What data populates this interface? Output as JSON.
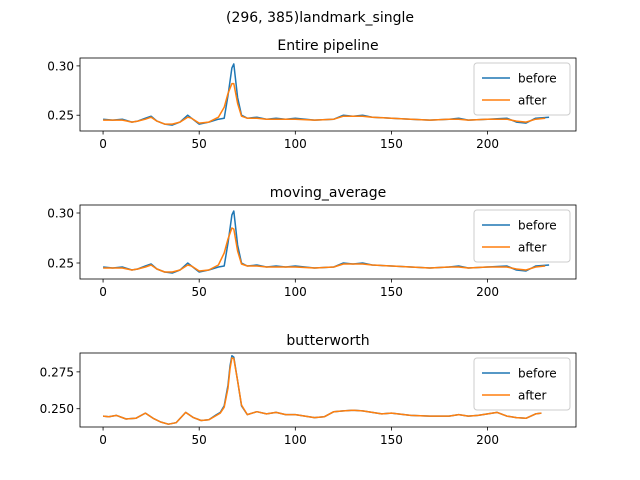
{
  "figure_title": "(296, 385)landmark_single",
  "colors": {
    "before": "#1f77b4",
    "after": "#ff7f0e"
  },
  "chart_data": [
    {
      "type": "line",
      "title": "Entire pipeline",
      "xlabel": "",
      "ylabel": "",
      "xlim": [
        -12,
        246
      ],
      "ylim": [
        0.234,
        0.308
      ],
      "xticks": [
        0,
        50,
        100,
        150,
        200
      ],
      "xtick_labels": [
        "0",
        "50",
        "100",
        "150",
        "200"
      ],
      "yticks": [
        0.25,
        0.3
      ],
      "ytick_labels": [
        "0.25",
        "0.30"
      ],
      "legend_position": "right",
      "grid": false,
      "series": [
        {
          "name": "before",
          "x": [
            0,
            5,
            10,
            15,
            18,
            22,
            25,
            28,
            32,
            36,
            40,
            44,
            46,
            50,
            55,
            60,
            63,
            65,
            67,
            68,
            70,
            72,
            75,
            80,
            85,
            90,
            95,
            100,
            110,
            120,
            125,
            130,
            135,
            140,
            150,
            160,
            170,
            180,
            185,
            190,
            200,
            210,
            215,
            220,
            225,
            232
          ],
          "y": [
            0.246,
            0.245,
            0.246,
            0.243,
            0.244,
            0.247,
            0.249,
            0.244,
            0.241,
            0.24,
            0.243,
            0.25,
            0.247,
            0.241,
            0.243,
            0.246,
            0.247,
            0.27,
            0.298,
            0.302,
            0.268,
            0.25,
            0.247,
            0.248,
            0.246,
            0.247,
            0.246,
            0.247,
            0.245,
            0.246,
            0.25,
            0.249,
            0.25,
            0.248,
            0.247,
            0.246,
            0.245,
            0.246,
            0.247,
            0.245,
            0.246,
            0.247,
            0.243,
            0.242,
            0.247,
            0.248
          ]
        },
        {
          "name": "after",
          "x": [
            0,
            5,
            10,
            15,
            18,
            22,
            25,
            28,
            32,
            36,
            40,
            44,
            46,
            50,
            55,
            60,
            63,
            65,
            67,
            68,
            70,
            72,
            75,
            80,
            85,
            90,
            95,
            100,
            110,
            120,
            125,
            130,
            135,
            140,
            150,
            160,
            170,
            180,
            185,
            190,
            200,
            210,
            215,
            220,
            225,
            230
          ],
          "y": [
            0.245,
            0.245,
            0.245,
            0.243,
            0.244,
            0.246,
            0.248,
            0.244,
            0.241,
            0.241,
            0.243,
            0.248,
            0.247,
            0.242,
            0.243,
            0.248,
            0.258,
            0.272,
            0.282,
            0.282,
            0.262,
            0.249,
            0.247,
            0.247,
            0.246,
            0.246,
            0.246,
            0.246,
            0.245,
            0.246,
            0.249,
            0.249,
            0.249,
            0.248,
            0.247,
            0.246,
            0.245,
            0.246,
            0.246,
            0.245,
            0.246,
            0.246,
            0.244,
            0.243,
            0.246,
            0.247
          ]
        }
      ]
    },
    {
      "type": "line",
      "title": "moving_average",
      "xlabel": "",
      "ylabel": "",
      "xlim": [
        -12,
        246
      ],
      "ylim": [
        0.234,
        0.308
      ],
      "xticks": [
        0,
        50,
        100,
        150,
        200
      ],
      "xtick_labels": [
        "0",
        "50",
        "100",
        "150",
        "200"
      ],
      "yticks": [
        0.25,
        0.3
      ],
      "ytick_labels": [
        "0.25",
        "0.30"
      ],
      "legend_position": "right",
      "grid": false,
      "series": [
        {
          "name": "before",
          "x": [
            0,
            5,
            10,
            15,
            18,
            22,
            25,
            28,
            32,
            36,
            40,
            44,
            46,
            50,
            55,
            60,
            63,
            65,
            67,
            68,
            70,
            72,
            75,
            80,
            85,
            90,
            95,
            100,
            110,
            120,
            125,
            130,
            135,
            140,
            150,
            160,
            170,
            180,
            185,
            190,
            200,
            210,
            215,
            220,
            225,
            232
          ],
          "y": [
            0.246,
            0.245,
            0.246,
            0.243,
            0.244,
            0.247,
            0.249,
            0.244,
            0.241,
            0.24,
            0.243,
            0.25,
            0.247,
            0.241,
            0.243,
            0.246,
            0.247,
            0.27,
            0.298,
            0.302,
            0.268,
            0.25,
            0.247,
            0.248,
            0.246,
            0.247,
            0.246,
            0.247,
            0.245,
            0.246,
            0.25,
            0.249,
            0.25,
            0.248,
            0.247,
            0.246,
            0.245,
            0.246,
            0.247,
            0.245,
            0.246,
            0.247,
            0.243,
            0.242,
            0.247,
            0.248
          ]
        },
        {
          "name": "after",
          "x": [
            0,
            5,
            10,
            15,
            18,
            22,
            25,
            28,
            32,
            36,
            40,
            44,
            46,
            50,
            55,
            60,
            63,
            65,
            67,
            68,
            70,
            72,
            75,
            80,
            85,
            90,
            95,
            100,
            110,
            120,
            125,
            130,
            135,
            140,
            150,
            160,
            170,
            180,
            185,
            190,
            200,
            210,
            215,
            220,
            225,
            230
          ],
          "y": [
            0.245,
            0.245,
            0.245,
            0.243,
            0.244,
            0.246,
            0.248,
            0.244,
            0.241,
            0.241,
            0.243,
            0.248,
            0.247,
            0.242,
            0.243,
            0.248,
            0.26,
            0.274,
            0.285,
            0.284,
            0.262,
            0.249,
            0.247,
            0.247,
            0.246,
            0.246,
            0.246,
            0.246,
            0.245,
            0.246,
            0.249,
            0.249,
            0.249,
            0.248,
            0.247,
            0.246,
            0.245,
            0.246,
            0.246,
            0.245,
            0.246,
            0.246,
            0.244,
            0.243,
            0.246,
            0.247
          ]
        }
      ]
    },
    {
      "type": "line",
      "title": "butterworth",
      "xlabel": "",
      "ylabel": "",
      "xlim": [
        -12,
        246
      ],
      "ylim": [
        0.2376,
        0.2878
      ],
      "xticks": [
        0,
        50,
        100,
        150,
        200
      ],
      "xtick_labels": [
        "0",
        "50",
        "100",
        "150",
        "200"
      ],
      "yticks": [
        0.25,
        0.275
      ],
      "ytick_labels": [
        "0.250",
        "0.275"
      ],
      "legend_position": "right",
      "grid": false,
      "series": [
        {
          "name": "before",
          "x": [
            0,
            3,
            7,
            12,
            17,
            22,
            26,
            30,
            34,
            38,
            43,
            47,
            51,
            55,
            59,
            61,
            63,
            65,
            66,
            67,
            68,
            70,
            72,
            75,
            80,
            85,
            90,
            95,
            100,
            105,
            110,
            115,
            120,
            125,
            130,
            135,
            140,
            145,
            150,
            160,
            170,
            180,
            185,
            190,
            195,
            200,
            205,
            210,
            215,
            220,
            225,
            228
          ],
          "y": [
            0.245,
            0.2445,
            0.2455,
            0.243,
            0.2435,
            0.247,
            0.2435,
            0.241,
            0.2395,
            0.2405,
            0.2475,
            0.244,
            0.242,
            0.2425,
            0.246,
            0.2475,
            0.252,
            0.266,
            0.279,
            0.286,
            0.285,
            0.269,
            0.252,
            0.246,
            0.248,
            0.2465,
            0.2475,
            0.246,
            0.246,
            0.245,
            0.244,
            0.2445,
            0.248,
            0.2485,
            0.249,
            0.2485,
            0.2475,
            0.2465,
            0.247,
            0.2455,
            0.245,
            0.245,
            0.246,
            0.245,
            0.2455,
            0.2465,
            0.2475,
            0.245,
            0.244,
            0.2435,
            0.2465,
            0.247
          ]
        },
        {
          "name": "after",
          "x": [
            0,
            3,
            7,
            12,
            17,
            22,
            26,
            30,
            34,
            38,
            43,
            47,
            51,
            55,
            59,
            61,
            63,
            65,
            66,
            67,
            68,
            70,
            72,
            75,
            80,
            85,
            90,
            95,
            100,
            105,
            110,
            115,
            120,
            125,
            130,
            135,
            140,
            145,
            150,
            160,
            170,
            180,
            185,
            190,
            195,
            200,
            205,
            210,
            215,
            220,
            225,
            228
          ],
          "y": [
            0.245,
            0.2445,
            0.2455,
            0.243,
            0.2435,
            0.247,
            0.2435,
            0.241,
            0.2395,
            0.2405,
            0.2475,
            0.244,
            0.242,
            0.2425,
            0.2455,
            0.247,
            0.251,
            0.264,
            0.277,
            0.2845,
            0.284,
            0.269,
            0.2525,
            0.246,
            0.248,
            0.2465,
            0.2475,
            0.246,
            0.246,
            0.245,
            0.244,
            0.2445,
            0.248,
            0.2485,
            0.249,
            0.2485,
            0.2475,
            0.2465,
            0.247,
            0.2455,
            0.245,
            0.245,
            0.246,
            0.245,
            0.2455,
            0.2465,
            0.2475,
            0.245,
            0.244,
            0.2435,
            0.2465,
            0.247
          ]
        }
      ]
    }
  ]
}
